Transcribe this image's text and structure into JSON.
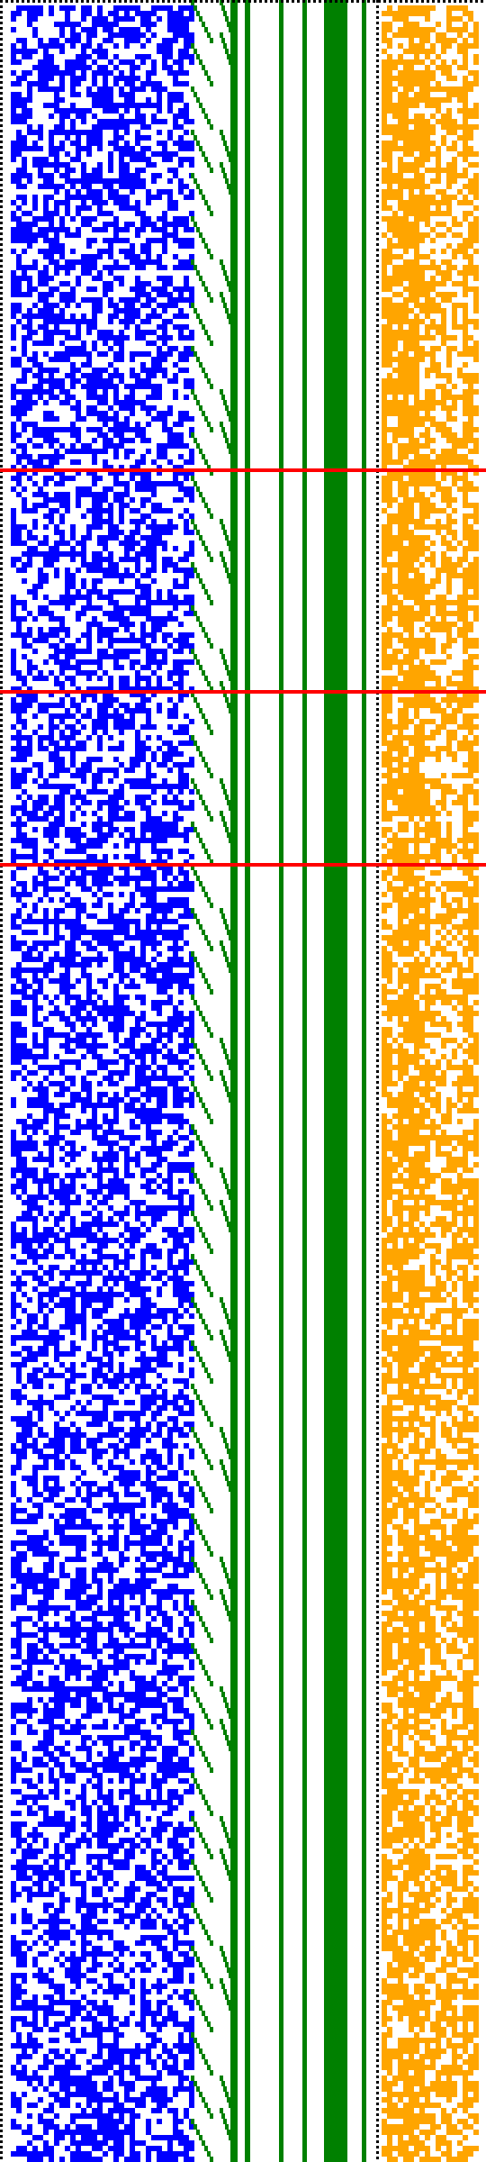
{
  "colors": {
    "background": "#ffffff",
    "blue_region": "#0000ff",
    "green_lines": "#008000",
    "orange_region": "#ffa500",
    "red_separators": "#ff0000",
    "black_border": "#000000"
  },
  "regions": {
    "blue_noise": {
      "fill_density": 0.55
    },
    "orange_noise": {
      "fill_density": 0.72
    }
  },
  "red_separator_count": 3,
  "green_solid_bar_count": 1,
  "green_thin_line_count": 6
}
